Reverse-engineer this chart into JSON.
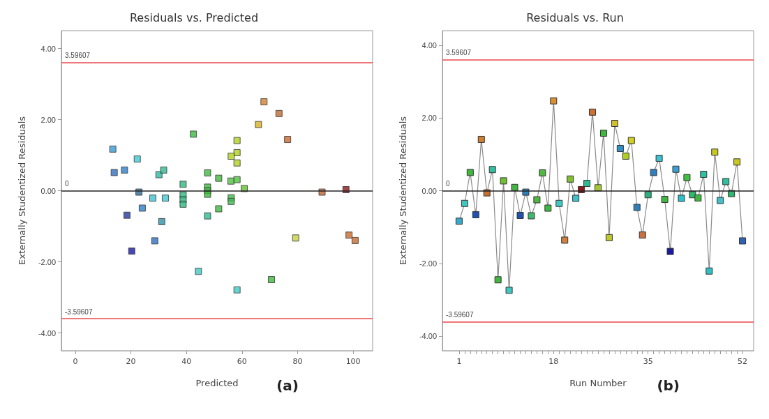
{
  "chart_data": [
    {
      "type": "scatter",
      "title": "Residuals vs. Predicted",
      "xlabel": "Predicted",
      "ylabel": "Externally Studentized Residuals",
      "annotations": [
        "(a)"
      ],
      "marker": "square",
      "xlim": [
        -5,
        107
      ],
      "xticks": [
        0,
        20,
        40,
        60,
        80,
        100
      ],
      "ylim": [
        -4.5,
        4.5
      ],
      "yticks": [
        {
          "value": -4,
          "label": "-4.00"
        },
        {
          "value": -2,
          "label": "-2.00"
        },
        {
          "value": 0,
          "label": "0.00"
        },
        {
          "value": 2,
          "label": "2.00"
        },
        {
          "value": 4,
          "label": "4.00"
        }
      ],
      "ref_lines": [
        {
          "axis": "y",
          "value": 3.59607,
          "label": "3.59607",
          "color": "#e8474c"
        },
        {
          "axis": "y",
          "value": 0,
          "label": "0",
          "color": "#222222"
        },
        {
          "axis": "y",
          "value": -3.59607,
          "label": "-3.59607",
          "color": "#e8474c"
        }
      ],
      "series": [
        {
          "x": [
            13.5,
            14.0,
            17.7,
            22.3,
            18.6,
            20.3,
            22.9,
            24.1,
            27.9,
            28.6,
            30.1,
            31.8,
            32.4,
            31.1,
            38.8,
            38.8,
            38.8,
            38.8,
            42.5,
            44.3,
            47.6,
            47.6,
            47.6,
            47.6,
            47.6,
            51.6,
            51.6,
            56.0,
            58.2,
            56.1,
            56.1,
            60.8,
            58.2,
            58.2,
            56.1,
            58.2,
            67.9,
            73.3,
            65.9,
            76.4,
            88.8,
            97.4,
            79.3,
            98.5,
            100.7,
            70.6,
            58.2
          ],
          "values": [
            1.17,
            0.51,
            0.58,
            0.89,
            -0.69,
            -1.7,
            -0.04,
            -0.49,
            -0.21,
            -1.41,
            0.45,
            0.58,
            -0.21,
            -0.87,
            0.18,
            -0.12,
            -0.25,
            -0.38,
            1.59,
            -2.27,
            0.5,
            0.1,
            0.0,
            -0.1,
            -0.71,
            0.35,
            -0.51,
            0.27,
            0.31,
            -0.2,
            -0.3,
            0.06,
            1.41,
            1.07,
            0.97,
            0.78,
            2.5,
            2.17,
            1.86,
            1.44,
            -0.04,
            0.03,
            -1.33,
            -1.25,
            -1.4,
            -2.5,
            -2.79
          ],
          "colors": [
            "#3a9ad0",
            "#2f6fc0",
            "#3080c8",
            "#40c8d0",
            "#203a9a",
            "#1a1aa0",
            "#2a6a90",
            "#2f80c8",
            "#40c0d0",
            "#2f6fc0",
            "#30b8a0",
            "#30b890",
            "#40c8d0",
            "#3090a8",
            "#30b880",
            "#30b880",
            "#30b880",
            "#30b880",
            "#40b840",
            "#40c8c0",
            "#40b840",
            "#40b840",
            "#40b840",
            "#40b840",
            "#30b890",
            "#40b840",
            "#40b840",
            "#50c040",
            "#50c040",
            "#40b850",
            "#40b850",
            "#60c030",
            "#b0d020",
            "#b0d020",
            "#b0d020",
            "#b0d020",
            "#d08030",
            "#c06a30",
            "#d8b020",
            "#c86a30",
            "#c06030",
            "#901818",
            "#c8d040",
            "#c86a30",
            "#c86a30",
            "#40b840",
            "#40c8c0"
          ]
        }
      ]
    },
    {
      "type": "line",
      "title": "Residuals vs. Run",
      "xlabel": "Run Number",
      "ylabel": "Externally Studentized Residuals",
      "annotations": [
        "(b)"
      ],
      "marker": "square",
      "xlim": [
        -2,
        54
      ],
      "xticks": [
        1,
        {
          "value": 2,
          "label": null
        },
        {
          "value": 3,
          "label": null
        },
        {
          "value": 4,
          "label": null
        },
        {
          "value": 5,
          "label": null
        },
        {
          "value": 6,
          "label": null
        },
        {
          "value": 7,
          "label": null
        },
        {
          "value": 8,
          "label": null
        },
        {
          "value": 9,
          "label": null
        },
        {
          "value": 10,
          "label": null
        },
        {
          "value": 11,
          "label": null
        },
        {
          "value": 12,
          "label": null
        },
        {
          "value": 13,
          "label": null
        },
        {
          "value": 14,
          "label": null
        },
        {
          "value": 15,
          "label": null
        },
        {
          "value": 16,
          "label": null
        },
        {
          "value": 17,
          "label": null
        },
        18,
        {
          "value": 19,
          "label": null
        },
        {
          "value": 20,
          "label": null
        },
        {
          "value": 21,
          "label": null
        },
        {
          "value": 22,
          "label": null
        },
        {
          "value": 23,
          "label": null
        },
        {
          "value": 24,
          "label": null
        },
        {
          "value": 25,
          "label": null
        },
        {
          "value": 26,
          "label": null
        },
        {
          "value": 27,
          "label": null
        },
        {
          "value": 28,
          "label": null
        },
        {
          "value": 29,
          "label": null
        },
        {
          "value": 30,
          "label": null
        },
        {
          "value": 31,
          "label": null
        },
        {
          "value": 32,
          "label": null
        },
        {
          "value": 33,
          "label": null
        },
        {
          "value": 34,
          "label": null
        },
        35,
        {
          "value": 36,
          "label": null
        },
        {
          "value": 37,
          "label": null
        },
        {
          "value": 38,
          "label": null
        },
        {
          "value": 39,
          "label": null
        },
        {
          "value": 40,
          "label": null
        },
        {
          "value": 41,
          "label": null
        },
        {
          "value": 42,
          "label": null
        },
        {
          "value": 43,
          "label": null
        },
        {
          "value": 44,
          "label": null
        },
        {
          "value": 45,
          "label": null
        },
        {
          "value": 46,
          "label": null
        },
        {
          "value": 47,
          "label": null
        },
        {
          "value": 48,
          "label": null
        },
        {
          "value": 49,
          "label": null
        },
        {
          "value": 50,
          "label": null
        },
        {
          "value": 51,
          "label": null
        },
        52
      ],
      "ylim": [
        -4.4,
        4.4
      ],
      "yticks": [
        {
          "value": -4,
          "label": "-4.00"
        },
        {
          "value": -2,
          "label": "-2.00"
        },
        {
          "value": 0,
          "label": "0.00"
        },
        {
          "value": 2,
          "label": "2.00"
        },
        {
          "value": 4,
          "label": "4.00"
        }
      ],
      "ref_lines": [
        {
          "axis": "y",
          "value": 3.59607,
          "label": "3.59607",
          "color": "#e8474c"
        },
        {
          "axis": "y",
          "value": 0,
          "label": "0",
          "color": "#222222"
        },
        {
          "axis": "y",
          "value": -3.59607,
          "label": "-3.59607",
          "color": "#e8474c"
        }
      ],
      "series": [
        {
          "color": "#8a8a8a",
          "x": [
            1,
            2,
            3,
            4,
            5,
            6,
            7,
            8,
            9,
            10,
            11,
            12,
            13,
            14,
            15,
            16,
            17,
            18,
            19,
            20,
            21,
            22,
            23,
            24,
            25,
            26,
            27,
            28,
            29,
            30,
            31,
            32,
            33,
            34,
            35,
            36,
            37,
            38,
            39,
            40,
            41,
            42,
            43,
            44,
            45,
            46,
            47,
            48,
            49,
            50,
            51,
            52
          ],
          "values": [
            -0.84,
            -0.35,
            0.5,
            -0.66,
            1.41,
            -0.06,
            0.58,
            -2.45,
            0.27,
            -2.74,
            0.09,
            -0.68,
            -0.04,
            -0.69,
            -0.25,
            0.49,
            -0.48,
            2.47,
            -0.35,
            -1.36,
            0.32,
            -0.21,
            0.03,
            0.2,
            2.16,
            0.08,
            1.58,
            -1.29,
            1.85,
            1.16,
            0.95,
            1.38,
            -0.46,
            -1.22,
            -0.11,
            0.5,
            0.89,
            -0.24,
            -1.67,
            0.59,
            -0.21,
            0.36,
            -0.11,
            -0.2,
            0.45,
            -2.21,
            1.06,
            -0.27,
            0.25,
            -0.08,
            0.79,
            -1.38
          ],
          "colors": [
            "#3aa8c8",
            "#40c8c0",
            "#40b840",
            "#2050b0",
            "#d08030",
            "#c87030",
            "#30c0a0",
            "#40b840",
            "#70c030",
            "#40c8c0",
            "#40b840",
            "#2050b0",
            "#3080b8",
            "#40b870",
            "#50b840",
            "#50b840",
            "#40b840",
            "#d89030",
            "#40c8c0",
            "#d08040",
            "#80c030",
            "#40c0c8",
            "#901818",
            "#30b890",
            "#d07030",
            "#a0c830",
            "#40b840",
            "#c0c830",
            "#d0c030",
            "#3090c8",
            "#b0d020",
            "#d0d020",
            "#3080b8",
            "#c87040",
            "#30b080",
            "#3080c0",
            "#40c0d0",
            "#40b840",
            "#1a1aa0",
            "#3aa0d0",
            "#30c0c8",
            "#40c040",
            "#30b870",
            "#40b840",
            "#30c0a0",
            "#30c0c0",
            "#c8c820",
            "#40c0c8",
            "#30c0a0",
            "#30b870",
            "#c8c820",
            "#3060b8"
          ]
        }
      ]
    }
  ]
}
